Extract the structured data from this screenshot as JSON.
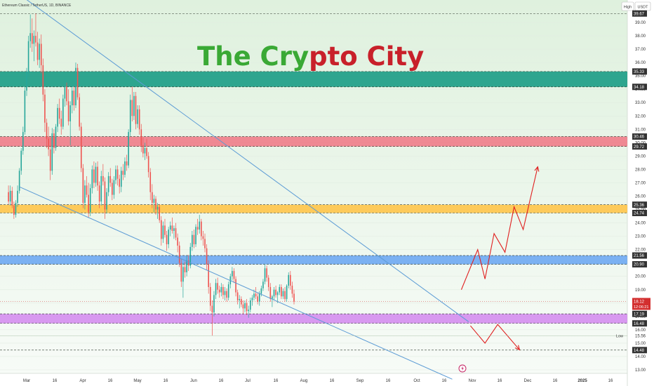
{
  "header": {
    "title": "Ethereum Classic / TetherUS, 1D, BINANCE",
    "high_button": "High",
    "currency_button": "USDT"
  },
  "watermark": {
    "word1": "The Cry",
    "word2": "pto City",
    "color1": "#3aa935",
    "color2": "#c8202a"
  },
  "colors": {
    "up": "#26a69a",
    "down": "#ef5350",
    "channel": "#5b9bd5",
    "arrow": "#e02020",
    "bg_top": "#e0f2df",
    "bg_bottom": "#f6fbf6"
  },
  "chart_data": {
    "type": "candlestick",
    "title": "Ethereum Classic / TetherUS, 1D, BINANCE",
    "ylim": [
      12.6,
      40.3
    ],
    "y_ticks": [
      "39.00",
      "38.00",
      "37.00",
      "36.00",
      "35.00",
      "34.00",
      "33.00",
      "32.00",
      "31.00",
      "30.00",
      "29.00",
      "28.00",
      "27.00",
      "26.00",
      "25.00",
      "24.00",
      "23.00",
      "22.00",
      "21.00",
      "20.00",
      "19.00",
      "18.00",
      "17.00",
      "16.00",
      "15.00",
      "14.00",
      "13.00"
    ],
    "x_ticks": [
      "Mar",
      "16",
      "Apr",
      "16",
      "May",
      "16",
      "Jun",
      "16",
      "Jul",
      "16",
      "Aug",
      "16",
      "Sep",
      "16",
      "Oct",
      "16",
      "Nov",
      "16",
      "Dec",
      "16",
      "2025",
      "16"
    ],
    "zones": [
      {
        "from": 34.18,
        "to": 35.33,
        "color": "#1a9c85"
      },
      {
        "from": 29.72,
        "to": 30.46,
        "color": "#f07d8a"
      },
      {
        "from": 24.74,
        "to": 25.36,
        "color": "#ffc44a"
      },
      {
        "from": 20.9,
        "to": 21.56,
        "color": "#6ea8f2"
      },
      {
        "from": 16.48,
        "to": 17.19,
        "color": "#d58ef0"
      }
    ],
    "price_labels": [
      {
        "value": 39.67,
        "text": "39.67",
        "bg": "#333333"
      },
      {
        "value": 35.33,
        "text": "35.33",
        "bg": "#333333"
      },
      {
        "value": 34.18,
        "text": "34.18",
        "bg": "#333333"
      },
      {
        "value": 30.46,
        "text": "30.46",
        "bg": "#333333"
      },
      {
        "value": 29.72,
        "text": "29.72",
        "bg": "#333333"
      },
      {
        "value": 25.36,
        "text": "25.36",
        "bg": "#333333"
      },
      {
        "value": 24.74,
        "text": "24.74",
        "bg": "#333333"
      },
      {
        "value": 21.56,
        "text": "21.56",
        "bg": "#333333"
      },
      {
        "value": 20.9,
        "text": "20.90",
        "bg": "#333333"
      },
      {
        "value": 17.19,
        "text": "17.19",
        "bg": "#333333"
      },
      {
        "value": 16.48,
        "text": "16.48",
        "bg": "#333333"
      },
      {
        "value": 14.48,
        "text": "14.48",
        "bg": "#333333"
      }
    ],
    "current_price": {
      "value": 18.12,
      "text": "18.12",
      "timer": "12:06:21",
      "bg": "#d32f2f"
    },
    "low_label": {
      "value": 15.56,
      "text": "Low",
      "price": "15.56"
    },
    "channel_upper": {
      "x": [
        "Feb 24",
        "Oct 30"
      ],
      "y": [
        41.3,
        16.6
      ]
    },
    "channel_lower": {
      "x": [
        "Feb 26",
        "Oct 21"
      ],
      "y": [
        26.7,
        12.3
      ]
    },
    "projection_up": {
      "x": [
        "Oct 26",
        "Nov 4",
        "Nov 8",
        "Nov 13",
        "Nov 19",
        "Nov 24",
        "Nov 29",
        "Dec 7"
      ],
      "y": [
        19.0,
        22.0,
        19.8,
        23.2,
        21.8,
        25.2,
        23.5,
        28.2
      ]
    },
    "projection_down": {
      "x": [
        "Oct 31",
        "Nov 8",
        "Nov 15",
        "Nov 27"
      ],
      "y": [
        16.3,
        15.0,
        16.4,
        14.5
      ]
    },
    "ohlc_daily": [
      [
        26.3,
        26.8,
        25.4,
        25.6
      ],
      [
        25.6,
        26.8,
        25.3,
        26.4
      ],
      [
        26.4,
        26.7,
        25.1,
        25.3
      ],
      [
        25.3,
        25.6,
        24.3,
        24.6
      ],
      [
        24.6,
        25.7,
        24.4,
        25.5
      ],
      [
        25.5,
        26.8,
        25.2,
        26.4
      ],
      [
        26.4,
        28.1,
        26.2,
        27.9
      ],
      [
        27.9,
        29.6,
        27.6,
        29.4
      ],
      [
        29.4,
        31.2,
        29.1,
        30.8
      ],
      [
        30.8,
        34.2,
        30.6,
        33.9
      ],
      [
        33.9,
        35.6,
        33.5,
        35.3
      ],
      [
        35.3,
        38.0,
        34.9,
        37.6
      ],
      [
        37.6,
        39.6,
        37.1,
        38.2
      ],
      [
        38.2,
        39.3,
        36.8,
        37.4
      ],
      [
        37.4,
        38.4,
        36.1,
        38.0
      ],
      [
        38.0,
        39.67,
        37.2,
        37.5
      ],
      [
        37.5,
        38.3,
        35.8,
        36.2
      ],
      [
        36.2,
        37.8,
        35.6,
        37.4
      ],
      [
        37.4,
        38.1,
        35.2,
        35.8
      ],
      [
        35.8,
        36.3,
        33.1,
        33.6
      ],
      [
        33.6,
        34.0,
        30.8,
        31.5
      ],
      [
        31.5,
        31.8,
        29.6,
        30.3
      ],
      [
        30.3,
        31.2,
        29.0,
        29.5
      ],
      [
        29.5,
        30.4,
        27.2,
        27.9
      ],
      [
        27.9,
        31.1,
        27.6,
        30.7
      ],
      [
        30.7,
        31.0,
        29.2,
        29.6
      ],
      [
        29.6,
        31.4,
        29.4,
        31.2
      ],
      [
        31.2,
        32.9,
        30.8,
        32.6
      ],
      [
        32.6,
        33.3,
        31.4,
        31.8
      ],
      [
        31.8,
        32.4,
        30.6,
        31.2
      ],
      [
        31.2,
        33.6,
        31.0,
        33.3
      ],
      [
        33.3,
        34.8,
        32.7,
        34.2
      ],
      [
        34.2,
        34.5,
        32.8,
        33.1
      ],
      [
        33.1,
        34.0,
        31.3,
        31.6
      ],
      [
        31.6,
        33.1,
        29.8,
        32.8
      ],
      [
        32.8,
        34.3,
        32.2,
        33.9
      ],
      [
        33.9,
        34.2,
        32.4,
        32.8
      ],
      [
        32.8,
        36.0,
        32.6,
        35.6
      ],
      [
        35.6,
        35.9,
        33.2,
        33.4
      ],
      [
        33.4,
        33.7,
        30.9,
        31.2
      ],
      [
        31.2,
        31.5,
        27.8,
        28.1
      ],
      [
        28.1,
        28.4,
        25.1,
        25.5
      ],
      [
        25.5,
        27.2,
        25.0,
        26.8
      ],
      [
        26.8,
        27.5,
        25.9,
        26.1
      ],
      [
        26.1,
        27.0,
        24.4,
        24.8
      ],
      [
        24.8,
        26.9,
        24.5,
        26.6
      ],
      [
        26.6,
        28.3,
        26.2,
        28.0
      ],
      [
        28.0,
        28.6,
        26.6,
        27.0
      ],
      [
        27.0,
        28.5,
        26.7,
        28.2
      ],
      [
        28.2,
        28.6,
        26.4,
        26.8
      ],
      [
        26.8,
        27.1,
        25.1,
        25.6
      ],
      [
        25.6,
        27.9,
        25.3,
        27.5
      ],
      [
        27.5,
        28.4,
        26.8,
        27.1
      ],
      [
        27.1,
        27.4,
        24.3,
        25.0
      ],
      [
        25.0,
        26.6,
        24.7,
        26.3
      ],
      [
        26.3,
        27.8,
        26.0,
        27.5
      ],
      [
        27.5,
        28.1,
        26.7,
        27.0
      ],
      [
        27.0,
        27.3,
        25.7,
        26.1
      ],
      [
        26.1,
        27.5,
        25.8,
        27.2
      ],
      [
        27.2,
        28.3,
        26.9,
        28.0
      ],
      [
        28.0,
        28.3,
        26.8,
        27.3
      ],
      [
        27.3,
        27.6,
        26.2,
        26.7
      ],
      [
        26.7,
        28.2,
        26.3,
        27.9
      ],
      [
        27.9,
        28.4,
        27.2,
        27.6
      ],
      [
        27.6,
        28.9,
        27.4,
        28.6
      ],
      [
        28.6,
        29.1,
        27.9,
        28.3
      ],
      [
        28.3,
        31.0,
        28.1,
        30.8
      ],
      [
        30.8,
        33.6,
        30.5,
        33.2
      ],
      [
        33.2,
        34.2,
        31.6,
        32.0
      ],
      [
        32.0,
        33.8,
        31.7,
        33.5
      ],
      [
        33.5,
        33.8,
        31.0,
        31.4
      ],
      [
        31.4,
        32.8,
        31.1,
        32.5
      ],
      [
        32.5,
        32.8,
        30.6,
        31.0
      ],
      [
        31.0,
        31.4,
        29.3,
        29.8
      ],
      [
        29.8,
        30.4,
        28.9,
        29.2
      ],
      [
        29.2,
        30.0,
        28.7,
        29.6
      ],
      [
        29.6,
        30.3,
        28.8,
        29.0
      ],
      [
        29.0,
        29.3,
        27.4,
        27.8
      ],
      [
        27.8,
        28.1,
        25.7,
        26.3
      ],
      [
        26.3,
        26.9,
        25.1,
        25.5
      ],
      [
        25.5,
        26.1,
        24.8,
        25.8
      ],
      [
        25.8,
        26.0,
        24.6,
        25.0
      ],
      [
        25.0,
        25.5,
        24.3,
        25.2
      ],
      [
        25.2,
        25.4,
        24.0,
        24.2
      ],
      [
        24.2,
        24.5,
        22.3,
        22.8
      ],
      [
        22.8,
        24.1,
        22.5,
        23.8
      ],
      [
        23.8,
        24.3,
        22.9,
        23.1
      ],
      [
        23.1,
        23.4,
        21.9,
        22.4
      ],
      [
        22.4,
        23.7,
        22.1,
        23.5
      ],
      [
        23.5,
        24.1,
        23.0,
        23.8
      ],
      [
        23.8,
        24.4,
        23.2,
        23.4
      ],
      [
        23.4,
        23.8,
        22.8,
        23.6
      ],
      [
        23.6,
        24.0,
        22.7,
        22.9
      ],
      [
        22.9,
        23.2,
        21.8,
        22.3
      ],
      [
        22.3,
        22.6,
        20.7,
        21.0
      ],
      [
        21.0,
        21.3,
        19.2,
        19.6
      ],
      [
        19.6,
        21.0,
        18.4,
        20.7
      ],
      [
        20.7,
        21.1,
        19.9,
        20.3
      ],
      [
        20.3,
        21.5,
        20.0,
        21.2
      ],
      [
        21.2,
        21.6,
        20.4,
        20.8
      ],
      [
        20.8,
        22.5,
        20.6,
        22.2
      ],
      [
        22.2,
        23.4,
        21.9,
        23.1
      ],
      [
        23.1,
        23.5,
        22.1,
        22.4
      ],
      [
        22.4,
        23.9,
        22.2,
        23.7
      ],
      [
        23.7,
        24.3,
        23.1,
        23.5
      ],
      [
        23.5,
        24.6,
        23.2,
        24.1
      ],
      [
        24.1,
        24.3,
        22.7,
        23.0
      ],
      [
        23.0,
        23.4,
        22.3,
        22.8
      ],
      [
        22.8,
        23.2,
        21.8,
        22.1
      ],
      [
        22.1,
        22.4,
        20.5,
        20.9
      ],
      [
        20.9,
        21.2,
        18.7,
        19.2
      ],
      [
        19.2,
        19.5,
        17.4,
        17.8
      ],
      [
        17.8,
        18.2,
        15.56,
        17.3
      ],
      [
        17.3,
        18.9,
        17.0,
        18.6
      ],
      [
        18.6,
        19.8,
        18.3,
        19.5
      ],
      [
        19.5,
        19.9,
        18.7,
        19.0
      ],
      [
        19.0,
        19.3,
        18.4,
        18.8
      ],
      [
        18.8,
        19.5,
        18.5,
        19.2
      ],
      [
        19.2,
        19.4,
        18.3,
        18.6
      ],
      [
        18.6,
        19.2,
        18.2,
        18.9
      ],
      [
        18.9,
        19.1,
        18.1,
        18.4
      ],
      [
        18.4,
        19.6,
        18.2,
        19.4
      ],
      [
        19.4,
        20.2,
        19.1,
        20.0
      ],
      [
        20.0,
        20.7,
        19.7,
        20.4
      ],
      [
        20.4,
        20.6,
        19.5,
        19.8
      ],
      [
        19.8,
        20.0,
        18.5,
        18.8
      ],
      [
        18.8,
        19.0,
        17.9,
        18.2
      ],
      [
        18.2,
        18.6,
        17.6,
        18.3
      ],
      [
        18.3,
        18.5,
        17.7,
        17.9
      ],
      [
        17.9,
        18.2,
        17.2,
        17.6
      ],
      [
        17.6,
        18.2,
        17.3,
        18.0
      ],
      [
        18.0,
        18.3,
        17.1,
        17.4
      ],
      [
        17.4,
        17.8,
        16.9,
        17.5
      ],
      [
        17.5,
        18.4,
        17.3,
        18.2
      ],
      [
        18.2,
        18.6,
        17.8,
        18.4
      ],
      [
        18.4,
        19.0,
        18.2,
        18.7
      ],
      [
        18.7,
        19.2,
        18.3,
        18.5
      ],
      [
        18.5,
        18.8,
        17.9,
        18.1
      ],
      [
        18.1,
        18.9,
        17.8,
        18.7
      ],
      [
        18.7,
        19.3,
        18.5,
        19.1
      ],
      [
        19.1,
        19.8,
        18.9,
        19.6
      ],
      [
        19.6,
        20.9,
        19.4,
        20.6
      ],
      [
        20.6,
        20.8,
        19.6,
        19.9
      ],
      [
        19.9,
        20.1,
        18.9,
        19.2
      ],
      [
        19.2,
        19.5,
        18.1,
        18.3
      ],
      [
        18.3,
        18.6,
        17.7,
        18.5
      ],
      [
        18.5,
        19.2,
        18.2,
        19.0
      ],
      [
        19.0,
        19.3,
        18.4,
        18.6
      ],
      [
        18.6,
        18.9,
        18.0,
        18.8
      ],
      [
        18.8,
        19.4,
        18.6,
        19.2
      ],
      [
        19.2,
        19.4,
        18.3,
        18.5
      ],
      [
        18.5,
        19.1,
        18.3,
        18.9
      ],
      [
        18.9,
        19.2,
        18.1,
        18.3
      ],
      [
        18.3,
        19.4,
        18.1,
        19.3
      ],
      [
        19.3,
        20.3,
        19.1,
        20.1
      ],
      [
        20.1,
        20.4,
        19.0,
        19.3
      ],
      [
        19.3,
        19.6,
        18.4,
        18.7
      ],
      [
        18.7,
        19.0,
        17.9,
        18.12
      ]
    ]
  }
}
